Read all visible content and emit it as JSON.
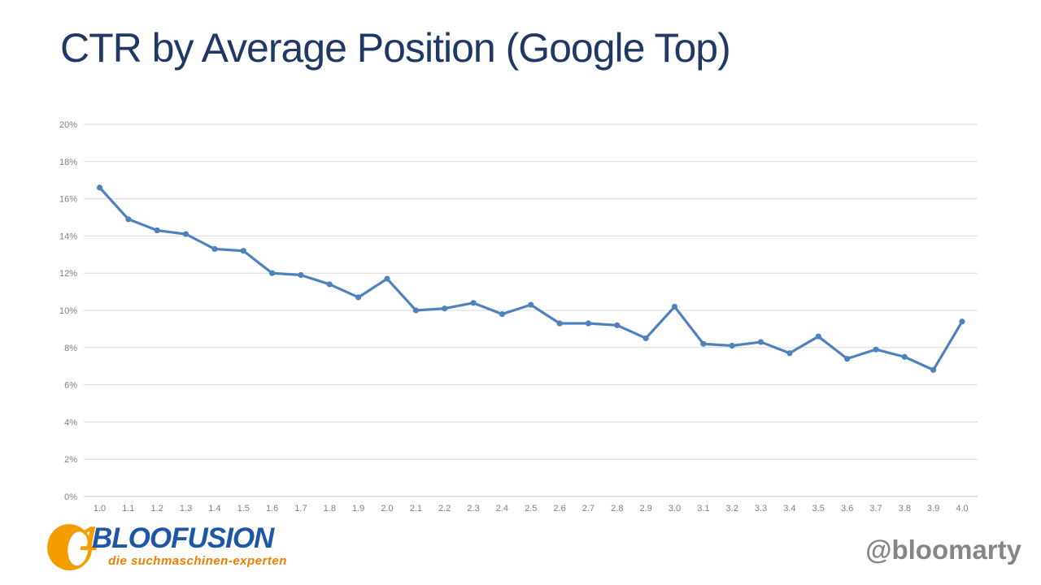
{
  "title": "CTR by Average Position (Google Top)",
  "chart_data": {
    "type": "line",
    "title": "CTR by Average Position (Google Top)",
    "x": [
      "1.0",
      "1.1",
      "1.2",
      "1.3",
      "1.4",
      "1.5",
      "1.6",
      "1.7",
      "1.8",
      "1.9",
      "2.0",
      "2.1",
      "2.2",
      "2.3",
      "2.4",
      "2.5",
      "2.6",
      "2.7",
      "2.8",
      "2.9",
      "3.0",
      "3.1",
      "3.2",
      "3.3",
      "3.4",
      "3.5",
      "3.6",
      "3.7",
      "3.8",
      "3.9",
      "4.0"
    ],
    "series": [
      {
        "name": "CTR",
        "values": [
          16.6,
          14.9,
          14.3,
          14.1,
          13.3,
          13.2,
          12.0,
          11.9,
          11.4,
          10.7,
          11.7,
          10.0,
          10.1,
          10.4,
          9.8,
          10.3,
          9.3,
          9.3,
          9.2,
          8.5,
          10.2,
          8.2,
          8.1,
          8.3,
          7.7,
          8.6,
          7.4,
          7.9,
          7.5,
          6.8,
          9.4
        ]
      }
    ],
    "xlabel": "",
    "ylabel": "",
    "ylim": [
      0,
      20
    ],
    "ytick_step": 2,
    "ytick_suffix": "%",
    "grid": true,
    "legend": "none",
    "marker": "circle"
  },
  "colors": {
    "title": "#1f3864",
    "line": "#4f81bd",
    "gridline": "#d9d9d9",
    "axis_line": "#c6c6c6",
    "tick_label": "#7f7f7f",
    "logo_orange": "#f59c00",
    "logo_blue": "#1d57a5",
    "tagline_orange": "#ef7d00",
    "handle_gray": "#868686"
  },
  "footer": {
    "logo_number": "1",
    "logo_text": "BLOOFUSION",
    "tagline": "die suchmaschinen-experten",
    "handle": "@bloomarty"
  }
}
